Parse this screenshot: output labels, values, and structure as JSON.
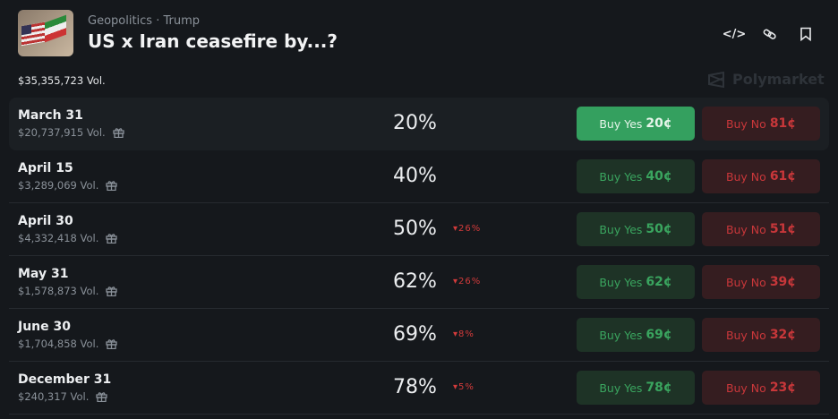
{
  "header": {
    "category": "Geopolitics",
    "tag": "Trump",
    "separator": "·",
    "title": "US x Iran ceasefire by...?",
    "volume": "$35,355,723 Vol.",
    "brand": "Polymarket",
    "icons": [
      "code-icon",
      "link-icon",
      "bookmark-icon"
    ]
  },
  "colors": {
    "yes": "#3aa55f",
    "yes_active": "#34a05f",
    "no": "#c8373a",
    "background": "#15181c"
  },
  "markets": [
    {
      "name": "March 31",
      "volume": "$20,737,915 Vol.",
      "percent": "20%",
      "change": "",
      "yes_label": "Buy Yes",
      "yes_price": "20¢",
      "no_label": "Buy No",
      "no_price": "81¢"
    },
    {
      "name": "April 15",
      "volume": "$3,289,069 Vol.",
      "percent": "40%",
      "change": "",
      "yes_label": "Buy Yes",
      "yes_price": "40¢",
      "no_label": "Buy No",
      "no_price": "61¢"
    },
    {
      "name": "April 30",
      "volume": "$4,332,418 Vol.",
      "percent": "50%",
      "change": "26%",
      "yes_label": "Buy Yes",
      "yes_price": "50¢",
      "no_label": "Buy No",
      "no_price": "51¢"
    },
    {
      "name": "May 31",
      "volume": "$1,578,873 Vol.",
      "percent": "62%",
      "change": "26%",
      "yes_label": "Buy Yes",
      "yes_price": "62¢",
      "no_label": "Buy No",
      "no_price": "39¢"
    },
    {
      "name": "June 30",
      "volume": "$1,704,858 Vol.",
      "percent": "69%",
      "change": "8%",
      "yes_label": "Buy Yes",
      "yes_price": "69¢",
      "no_label": "Buy No",
      "no_price": "32¢"
    },
    {
      "name": "December 31",
      "volume": "$240,317 Vol.",
      "percent": "78%",
      "change": "5%",
      "yes_label": "Buy Yes",
      "yes_price": "78¢",
      "no_label": "Buy No",
      "no_price": "23¢"
    }
  ]
}
